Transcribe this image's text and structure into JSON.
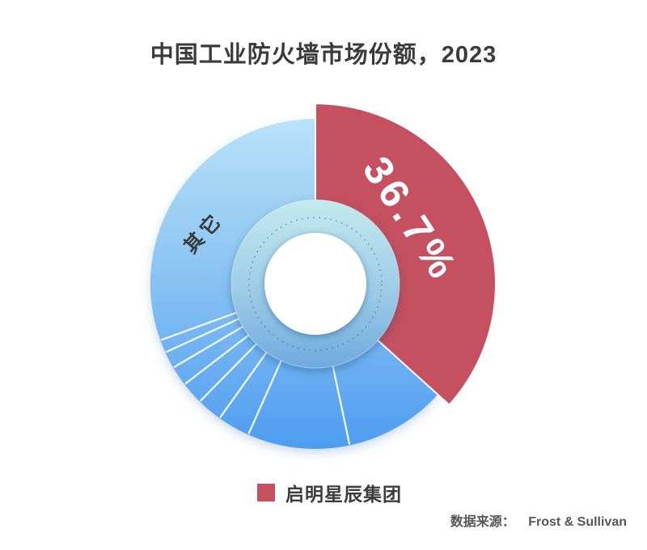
{
  "title": "中国工业防火墙市场份额，2023",
  "legend": {
    "items": [
      {
        "label": "启明星辰集团",
        "color": "#C5505F"
      }
    ]
  },
  "source": {
    "prefix": "数据来源：",
    "name": "Frost & Sullivan"
  },
  "chart_data": {
    "type": "pie",
    "donut": true,
    "title": "中国工业防火墙市场份额，2023",
    "start_angle_deg": 0,
    "clockwise": true,
    "slices": [
      {
        "name": "启明星辰集团",
        "value": 36.7,
        "display_label": "36.7%",
        "color": "#C5505F"
      },
      {
        "name": "其它",
        "value": 63.3,
        "display_label": "其它",
        "gradient_top": "#B5E1F7",
        "gradient_bottom": "#4D9CF0"
      }
    ],
    "other_sub_divider_angles_deg": [
      168,
      204,
      215.5,
      224.5,
      232.5,
      239.5,
      245.5,
      250
    ],
    "legend_position": "bottom",
    "source": "Frost & Sullivan"
  }
}
